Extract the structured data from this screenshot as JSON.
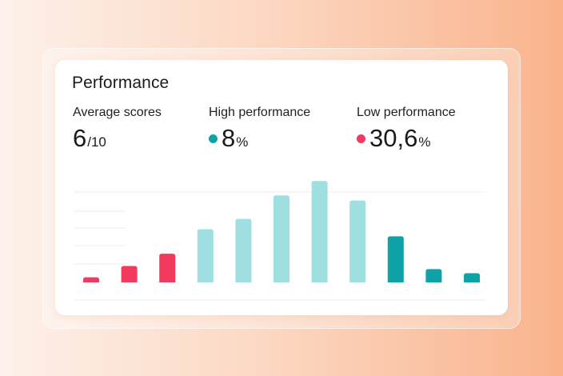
{
  "card": {
    "title": "Performance"
  },
  "stats": [
    {
      "label": "Average scores",
      "value": "6",
      "suffix": "/10",
      "dot_color": ""
    },
    {
      "label": "High performance",
      "value": "8",
      "suffix": "%",
      "dot_color": "#0fa3a8"
    },
    {
      "label": "Low performance",
      "value": "30,6",
      "suffix": "%",
      "dot_color": "#f23a5f"
    }
  ],
  "colors": {
    "low": "#f23a5f",
    "mid": "#a0dfe1",
    "high": "#0fa3a8",
    "grid": "#ececf0"
  },
  "chart_data": {
    "type": "bar",
    "values": [
      5,
      16,
      28,
      52,
      62,
      85,
      99,
      80,
      45,
      13,
      9
    ],
    "groups": [
      "low",
      "low",
      "low",
      "mid",
      "mid",
      "mid",
      "mid",
      "mid",
      "high",
      "high",
      "high"
    ],
    "ylim": [
      0,
      100
    ],
    "grid": true
  }
}
